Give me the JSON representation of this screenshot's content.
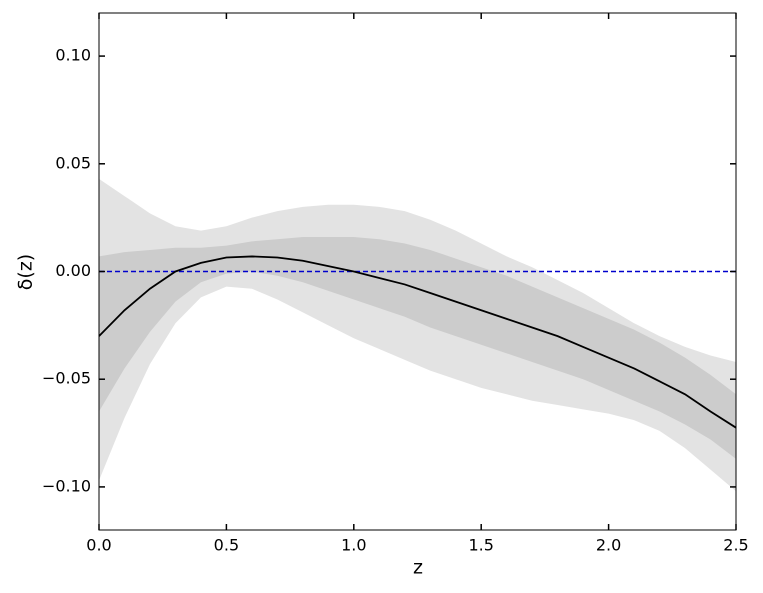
{
  "chart_data": {
    "type": "line",
    "xlabel": "z",
    "ylabel": "δ(z)",
    "x": [
      0,
      0.1,
      0.2,
      0.3,
      0.4,
      0.5,
      0.6,
      0.7,
      0.8,
      0.9,
      1.0,
      1.1,
      1.2,
      1.3,
      1.4,
      1.5,
      1.6,
      1.7,
      1.8,
      1.9,
      2.0,
      2.1,
      2.2,
      2.3,
      2.4,
      2.5
    ],
    "bands": [
      {
        "color": "#e3e3e3",
        "upper": [
          0.043,
          0.035,
          0.027,
          0.021,
          0.019,
          0.021,
          0.025,
          0.028,
          0.03,
          0.031,
          0.031,
          0.03,
          0.028,
          0.024,
          0.019,
          0.013,
          0.007,
          0.002,
          -0.004,
          -0.01,
          -0.017,
          -0.024,
          -0.03,
          -0.035,
          -0.039,
          -0.042
        ],
        "lower": [
          -0.097,
          -0.068,
          -0.043,
          -0.024,
          -0.012,
          -0.007,
          -0.008,
          -0.013,
          -0.019,
          -0.025,
          -0.031,
          -0.036,
          -0.041,
          -0.046,
          -0.05,
          -0.054,
          -0.057,
          -0.06,
          -0.062,
          -0.064,
          -0.066,
          -0.069,
          -0.074,
          -0.082,
          -0.092,
          -0.102
        ]
      },
      {
        "color": "#cccccc",
        "upper": [
          0.007,
          0.009,
          0.01,
          0.011,
          0.011,
          0.012,
          0.014,
          0.015,
          0.016,
          0.016,
          0.016,
          0.015,
          0.013,
          0.01,
          0.006,
          0.002,
          -0.002,
          -0.007,
          -0.012,
          -0.017,
          -0.022,
          -0.027,
          -0.033,
          -0.04,
          -0.048,
          -0.057
        ],
        "lower": [
          -0.065,
          -0.045,
          -0.028,
          -0.014,
          -0.005,
          -0.001,
          0.0,
          -0.002,
          -0.005,
          -0.009,
          -0.013,
          -0.017,
          -0.021,
          -0.026,
          -0.03,
          -0.034,
          -0.038,
          -0.042,
          -0.046,
          -0.05,
          -0.055,
          -0.06,
          -0.065,
          -0.071,
          -0.078,
          -0.087
        ]
      }
    ],
    "series": [
      {
        "color": "#000000",
        "values": [
          -0.03,
          -0.018,
          -0.008,
          0.0,
          0.004,
          0.0065,
          0.007,
          0.0065,
          0.005,
          0.0025,
          0.0,
          -0.003,
          -0.006,
          -0.01,
          -0.014,
          -0.018,
          -0.022,
          -0.026,
          -0.03,
          -0.035,
          -0.04,
          -0.045,
          -0.051,
          -0.057,
          -0.065,
          -0.0725
        ]
      }
    ],
    "hlines": [
      {
        "value": 0,
        "color": "#0000cc",
        "style": "dashed"
      }
    ],
    "xlim": [
      0,
      2.5
    ],
    "ylim": [
      -0.12,
      0.12
    ],
    "xticks": [
      {
        "value": 0,
        "label": "0.0"
      },
      0.5,
      {
        "value": 1,
        "label": "1.0"
      },
      1.5,
      {
        "value": 2,
        "label": "2.0"
      },
      2.5
    ],
    "yticks": [
      {
        "value": -0.1,
        "label": "−0.10"
      },
      {
        "value": -0.05,
        "label": "−0.05"
      },
      {
        "value": 0,
        "label": "0.00"
      },
      {
        "value": 0.05,
        "label": "0.05"
      },
      {
        "value": 0.1,
        "label": "0.10"
      }
    ],
    "grid": false
  }
}
